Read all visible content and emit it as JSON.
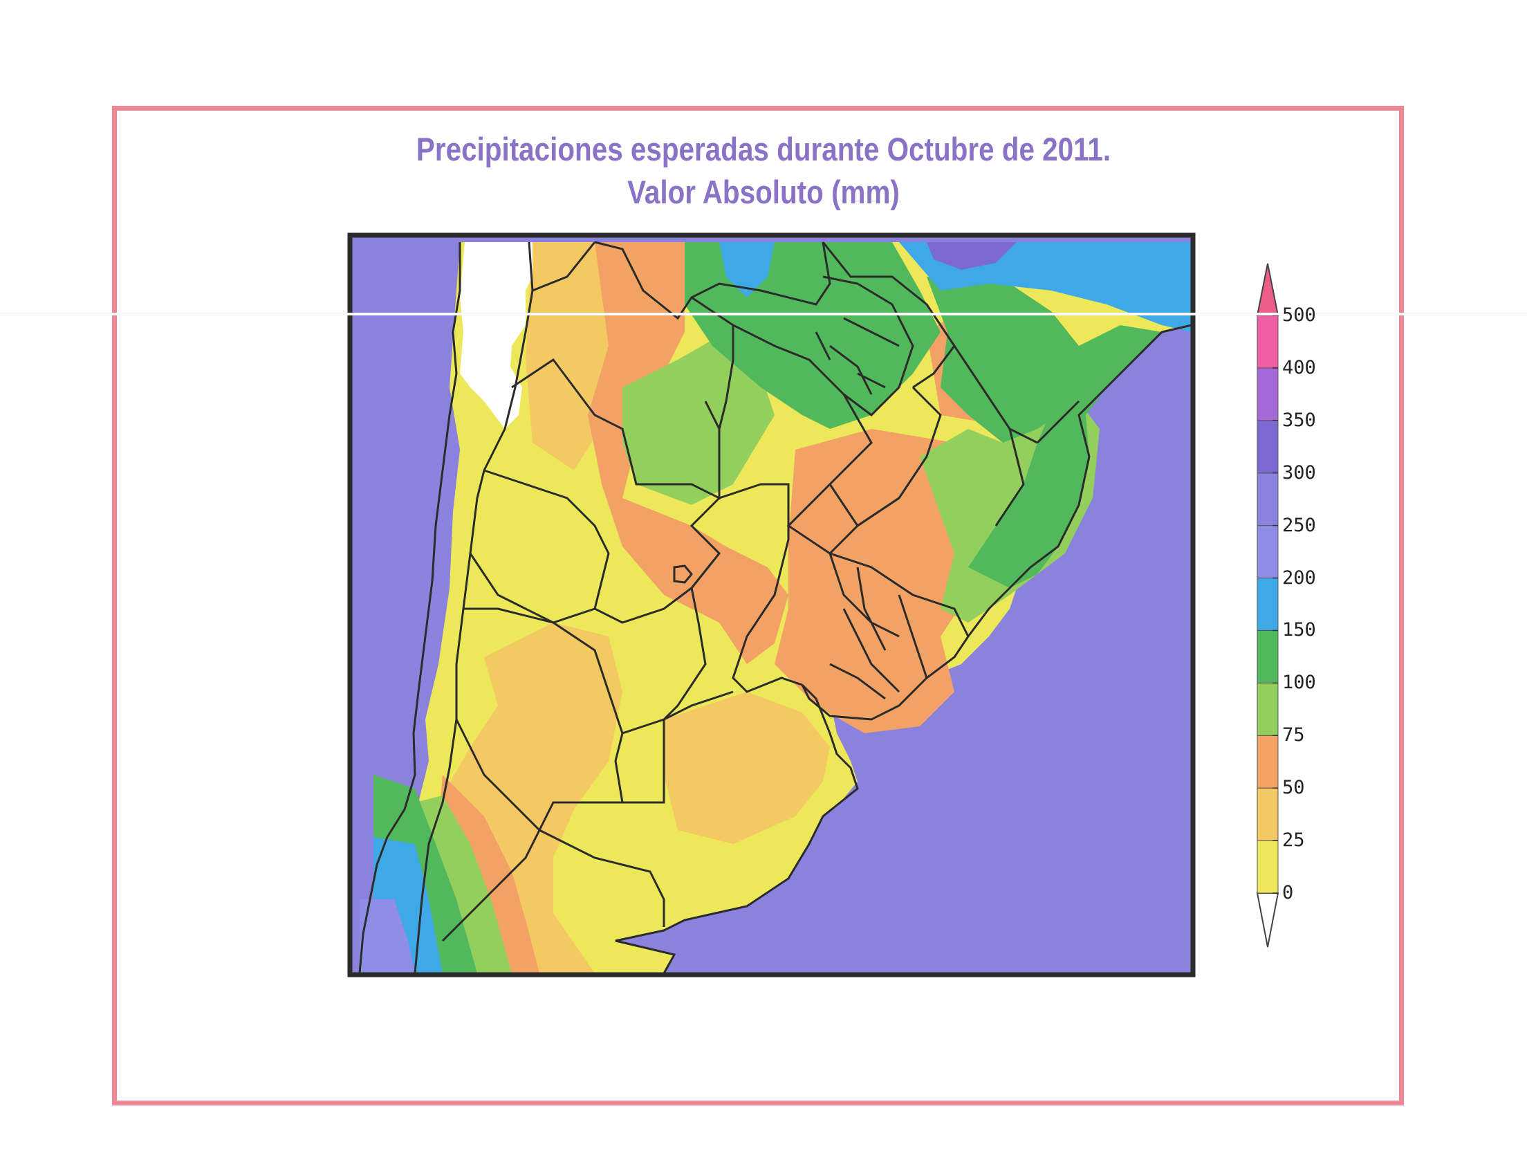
{
  "title": {
    "line1": "Precipitaciones esperadas durante  Octubre de 2011.",
    "line2": "Valor Absoluto (mm)"
  },
  "legend": {
    "bins": [
      {
        "from": 0,
        "to": 25,
        "color": "#ece85a"
      },
      {
        "from": 25,
        "to": 50,
        "color": "#f4c862"
      },
      {
        "from": 50,
        "to": 75,
        "color": "#f3a266"
      },
      {
        "from": 75,
        "to": 100,
        "color": "#93cf5c"
      },
      {
        "from": 100,
        "to": 150,
        "color": "#52b85c"
      },
      {
        "from": 150,
        "to": 200,
        "color": "#3fa9e7"
      },
      {
        "from": 200,
        "to": 250,
        "color": "#8e8ee6"
      },
      {
        "from": 250,
        "to": 300,
        "color": "#8a82dc"
      },
      {
        "from": 300,
        "to": 350,
        "color": "#7c6ad2"
      },
      {
        "from": 350,
        "to": 400,
        "color": "#a56ad8"
      },
      {
        "from": 400,
        "to": 500,
        "color": "#ee5fa3"
      }
    ],
    "tick_labels": [
      "0",
      "25",
      "50",
      "75",
      "100",
      "150",
      "200",
      "250",
      "300",
      "350",
      "400",
      "500"
    ]
  },
  "colors": {
    "frame": "#ec8795",
    "ocean": "#8a82dc",
    "map_border": "#2b2b2b",
    "title": "#8a73c6"
  }
}
